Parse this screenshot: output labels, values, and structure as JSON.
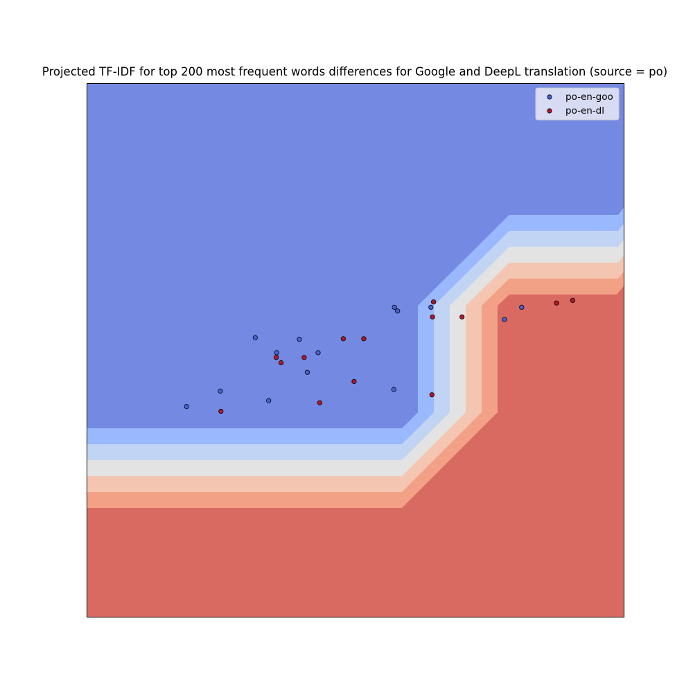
{
  "chart_data": {
    "type": "scatter",
    "title": "Projected TF-IDF for top 200 most frequent words differences for Google and DeepL translation (source = po)",
    "xlabel": "",
    "ylabel": "",
    "xlim": [
      0,
      100
    ],
    "ylim": [
      0,
      100
    ],
    "grid": false,
    "ticks": false,
    "legend_position": "top-right",
    "background": "decision-boundary contour filled with coolwarm colormap; blue region upper-left, red region lower-right",
    "contour_colors": [
      "#7489e2",
      "#9ab8fe",
      "#c1d4f4",
      "#e3e3e3",
      "#f4c6b1",
      "#f2a086",
      "#d86a62"
    ],
    "series": [
      {
        "name": "po-en-goo",
        "color": "#4a62d1",
        "points": [
          [
            18.6,
            39.4
          ],
          [
            24.9,
            42.3
          ],
          [
            31.4,
            52.3
          ],
          [
            33.9,
            40.5
          ],
          [
            35.4,
            49.5
          ],
          [
            39.6,
            52.0
          ],
          [
            41.1,
            45.8
          ],
          [
            43.1,
            49.5
          ],
          [
            57.3,
            58.0
          ],
          [
            57.9,
            57.3
          ],
          [
            57.2,
            42.6
          ],
          [
            64.1,
            58.0
          ],
          [
            77.8,
            55.7
          ],
          [
            81.0,
            58.0
          ]
        ]
      },
      {
        "name": "po-en-dl",
        "color": "#b2182b",
        "points": [
          [
            25.0,
            38.5
          ],
          [
            35.3,
            48.6
          ],
          [
            36.2,
            47.6
          ],
          [
            40.5,
            48.6
          ],
          [
            43.4,
            40.1
          ],
          [
            47.8,
            52.1
          ],
          [
            49.8,
            44.1
          ],
          [
            51.6,
            52.1
          ],
          [
            64.6,
            59.0
          ],
          [
            64.4,
            56.2
          ],
          [
            64.3,
            41.6
          ],
          [
            69.9,
            56.2
          ],
          [
            87.5,
            58.8
          ],
          [
            90.5,
            59.3
          ]
        ]
      }
    ]
  }
}
